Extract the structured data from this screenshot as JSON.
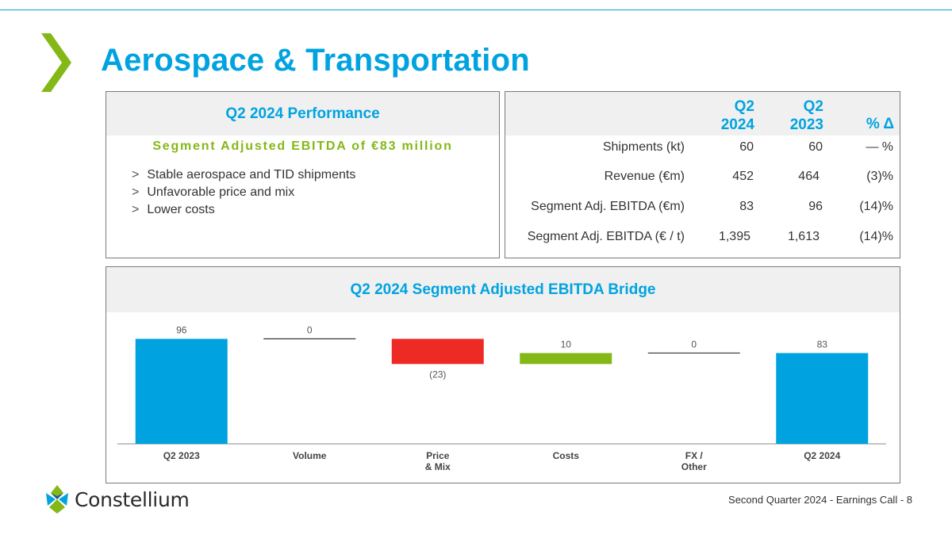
{
  "title": "Aerospace & Transportation",
  "colors": {
    "accent": "#00a3e0",
    "green": "#84b817",
    "red": "#ee2a24",
    "panel_bg": "#f0f0f0"
  },
  "performance": {
    "heading": "Q2 2024 Performance",
    "subheading": "Segment Adjusted EBITDA of €83 million",
    "bullet_marker": ">",
    "bullets": [
      "Stable aerospace and TID shipments",
      "Unfavorable price and mix",
      "Lower costs"
    ]
  },
  "table": {
    "col1_line1": "Q2",
    "col1_line2": "2024",
    "col2_line1": "Q2",
    "col2_line2": "2023",
    "col3": "% Δ",
    "rows": [
      {
        "label": "Shipments (kt)",
        "q2_2024": "60",
        "q2_2023": "60",
        "change": "— %"
      },
      {
        "label": "Revenue (€m)",
        "q2_2024": "452",
        "q2_2023": "464",
        "change": "(3)%"
      },
      {
        "label": "Segment Adj. EBITDA (€m)",
        "q2_2024": "83",
        "q2_2023": "96",
        "change": "(14)%"
      },
      {
        "label": "Segment Adj. EBITDA (€ / t)",
        "q2_2024": "1,395",
        "q2_2023": "1,613",
        "change": "(14)%"
      }
    ]
  },
  "chart_data": {
    "type": "bar",
    "subtype": "waterfall",
    "title": "Q2 2024 Segment Adjusted EBITDA Bridge",
    "categories": [
      "Q2 2023",
      "Volume",
      "Price\n& Mix",
      "Costs",
      "FX /\nOther",
      "Q2 2024"
    ],
    "values": [
      96,
      0,
      -23,
      10,
      0,
      83
    ],
    "data_labels": [
      "96",
      "0",
      "(23)",
      "10",
      "0",
      "83"
    ],
    "kinds": [
      "total",
      "delta",
      "delta",
      "delta",
      "delta",
      "total"
    ],
    "ylim": [
      0,
      100
    ]
  },
  "logo": {
    "name": "Constellium"
  },
  "footer": "Second Quarter 2024 -  Earnings Call - 8"
}
